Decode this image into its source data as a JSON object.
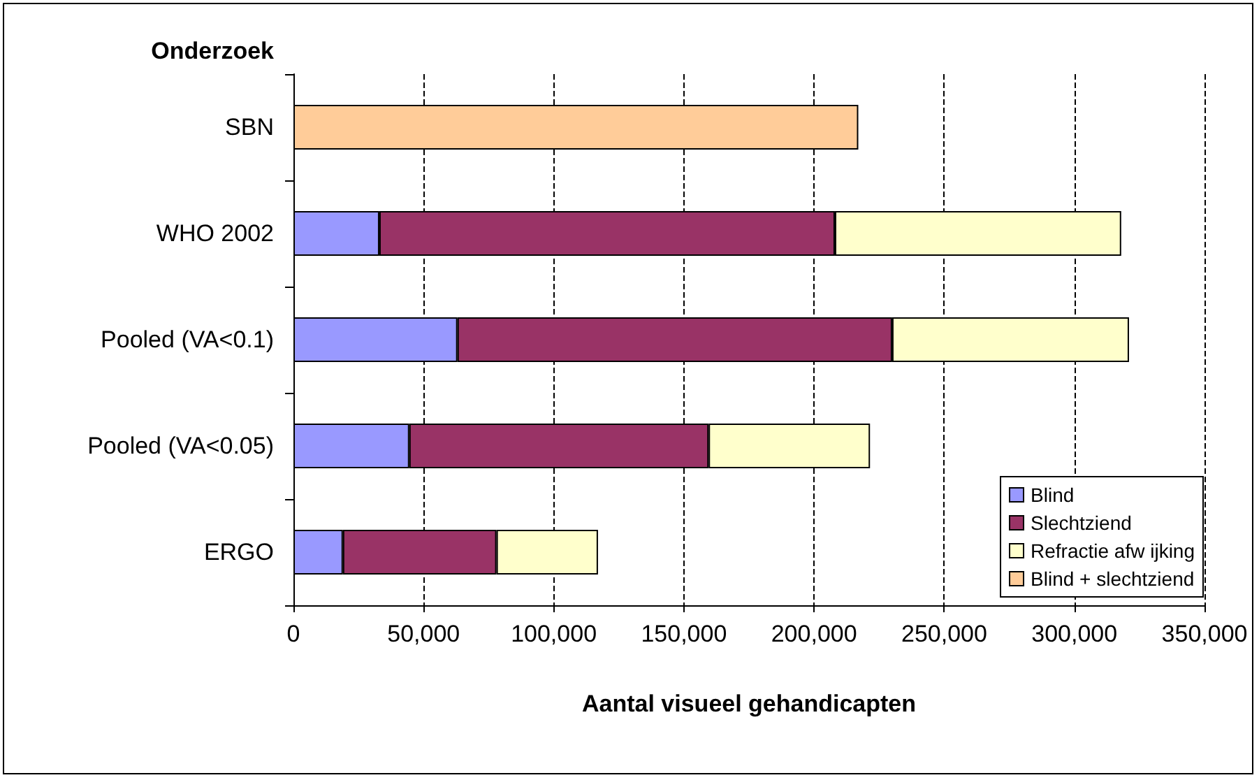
{
  "chart_data": {
    "type": "bar",
    "orientation": "horizontal",
    "stacked": true,
    "ylabel": "Onderzoek",
    "xlabel": "Aantal visueel gehandicapten",
    "categories": [
      "SBN",
      "WHO 2002",
      "Pooled (VA<0.1)",
      "Pooled (VA<0.05)",
      "ERGO"
    ],
    "series": [
      {
        "name": "Blind",
        "color": "#9999ff",
        "values": [
          null,
          33000,
          63000,
          44500,
          19000
        ]
      },
      {
        "name": "Slechtziend",
        "color": "#993366",
        "values": [
          null,
          175000,
          167000,
          115000,
          59000
        ]
      },
      {
        "name": "Refractie afw ijking",
        "color": "#ffffcc",
        "values": [
          null,
          110000,
          91000,
          62000,
          39000
        ]
      },
      {
        "name": "Blind + slechtziend",
        "color": "#ffcc99",
        "values": [
          217000,
          null,
          null,
          null,
          null
        ]
      }
    ],
    "xlim": [
      0,
      350000
    ],
    "xticks": [
      0,
      {
        "value": 50000,
        "label": "50,000"
      },
      {
        "value": 100000,
        "label": "100,000"
      },
      {
        "value": 150000,
        "label": "150,000"
      },
      {
        "value": 200000,
        "label": "200,000"
      },
      {
        "value": 250000,
        "label": "250,000"
      },
      {
        "value": 300000,
        "label": "300,000"
      },
      {
        "value": 350000,
        "label": "350,000"
      }
    ],
    "grid": "x",
    "legend": "bottom right"
  }
}
